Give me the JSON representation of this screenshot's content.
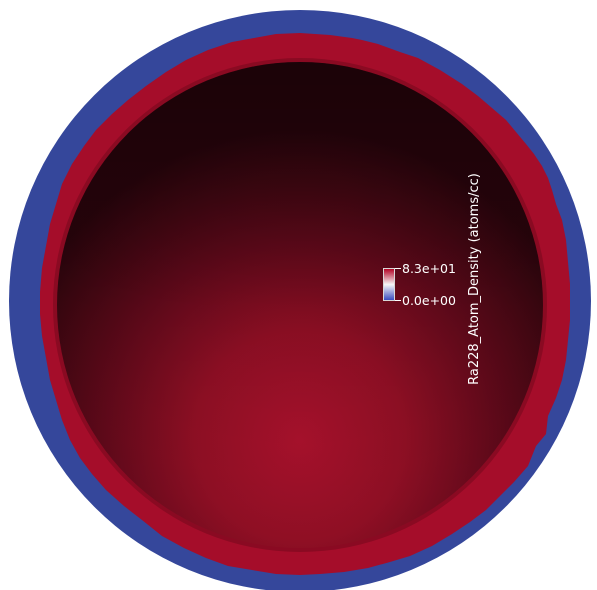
{
  "legend": {
    "title": "Ra228_Atom_Density (atoms/cc)",
    "max_label": "8.3e+01",
    "min_label": "0.0e+00",
    "range": [
      0.0,
      83.0
    ],
    "colormap": [
      "#3b4cc0",
      "#f7f7f7",
      "#b40426"
    ]
  },
  "colors": {
    "background": "#ffffff",
    "outer_ring": "#35479b",
    "inner_ring": "#a50d2a",
    "sphere_center": "#a8112c",
    "sphere_edge": "#2a060e"
  }
}
